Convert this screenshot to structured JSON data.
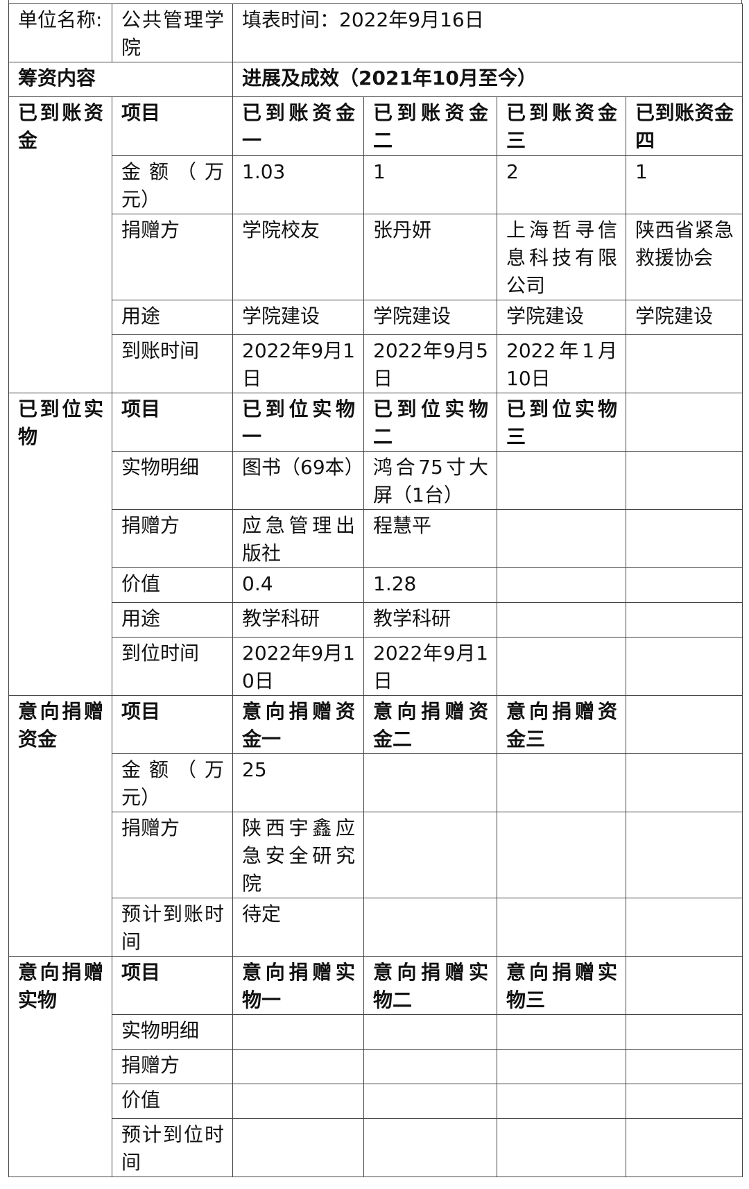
{
  "header": {
    "unit_label": "单位名称:",
    "unit_value": "公共管理学院",
    "fill_time": "填表时间：2022年9月16日",
    "content_label": "筹资内容",
    "progress_label": "进展及成效（2021年10月至今）"
  },
  "sections": [
    {
      "title": "已到账资金",
      "rows": [
        {
          "label": "项目",
          "cells": [
            "已到账资金一",
            "已到账资金二",
            "已到账资金三",
            "已到账资金四"
          ],
          "bold": true
        },
        {
          "label": "金额（万元）",
          "cells": [
            "1.03",
            "1",
            "2",
            "1"
          ]
        },
        {
          "label": "捐赠方",
          "cells": [
            "学院校友",
            "张丹妍",
            "上海哲寻信息科技有限公司",
            "陕西省紧急救援协会"
          ]
        },
        {
          "label": "用途",
          "cells": [
            "学院建设",
            "学院建设",
            "学院建设",
            "学院建设"
          ]
        },
        {
          "label": "到账时间",
          "cells": [
            "2022年9月1日",
            "2022年9月5日",
            "2022年1月10日",
            ""
          ]
        }
      ]
    },
    {
      "title": "已到位实物",
      "rows": [
        {
          "label": "项目",
          "cells": [
            "已到位实物一",
            "已到位实物二",
            "已到位实物三",
            ""
          ],
          "bold": true
        },
        {
          "label": "实物明细",
          "cells": [
            "图书（69本）",
            "鸿合75寸大屏（1台）",
            "",
            ""
          ]
        },
        {
          "label": "捐赠方",
          "cells": [
            "应急管理出版社",
            "程慧平",
            "",
            ""
          ]
        },
        {
          "label": "价值",
          "cells": [
            "0.4",
            "1.28",
            "",
            ""
          ]
        },
        {
          "label": "用途",
          "cells": [
            "教学科研",
            "教学科研",
            "",
            ""
          ]
        },
        {
          "label": "到位时间",
          "cells": [
            "2022年9月10日",
            "2022年9月1日",
            "",
            ""
          ]
        }
      ]
    },
    {
      "title": "意向捐赠资金",
      "rows": [
        {
          "label": "项目",
          "cells": [
            "意向捐赠资金一",
            "意向捐赠资金二",
            "意向捐赠资金三",
            ""
          ],
          "bold": true
        },
        {
          "label": "金额（万元）",
          "cells": [
            "25",
            "",
            "",
            ""
          ]
        },
        {
          "label": "捐赠方",
          "cells": [
            "陕西宇鑫应急安全研究院",
            "",
            "",
            ""
          ]
        },
        {
          "label": "预计到账时间",
          "cells": [
            "待定",
            "",
            "",
            ""
          ]
        }
      ]
    },
    {
      "title": "意向捐赠实物",
      "rows": [
        {
          "label": "项目",
          "cells": [
            "意向捐赠实物一",
            "意向捐赠实物二",
            "意向捐赠实物三",
            ""
          ],
          "bold": true
        },
        {
          "label": "实物明细",
          "cells": [
            "",
            "",
            "",
            ""
          ]
        },
        {
          "label": "捐赠方",
          "cells": [
            "",
            "",
            "",
            ""
          ]
        },
        {
          "label": "价值",
          "cells": [
            "",
            "",
            "",
            ""
          ]
        },
        {
          "label": "预计到位时间",
          "cells": [
            "",
            "",
            "",
            ""
          ]
        }
      ]
    }
  ]
}
